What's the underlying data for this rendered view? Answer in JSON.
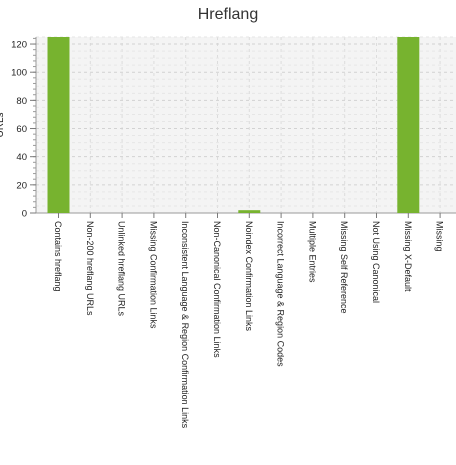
{
  "chart_data": {
    "type": "bar",
    "title": "Hreflang",
    "ylabel": "URLs",
    "ylim": [
      0,
      125
    ],
    "yticks": [
      0,
      20,
      40,
      60,
      80,
      100,
      120
    ],
    "grid": true,
    "categories": [
      "Contains hreflang",
      "Non-200 hreflang URLs",
      "Unlinked hreflang URLs",
      "Missing Confirmation Links",
      "Inconsistent Language & Region Confirmation Links",
      "Non-Canonical Confirmation Links",
      "Noindex Confirmation Links",
      "Incorrect Language & Region Codes",
      "Multiple Entries",
      "Missing Self Reference",
      "Not Using Canonical",
      "Missing X-Default",
      "Missing"
    ],
    "values": [
      125,
      0,
      0,
      0,
      0,
      0,
      2,
      0,
      0,
      0,
      0,
      125,
      0
    ],
    "bar_color": "#77b32f"
  }
}
